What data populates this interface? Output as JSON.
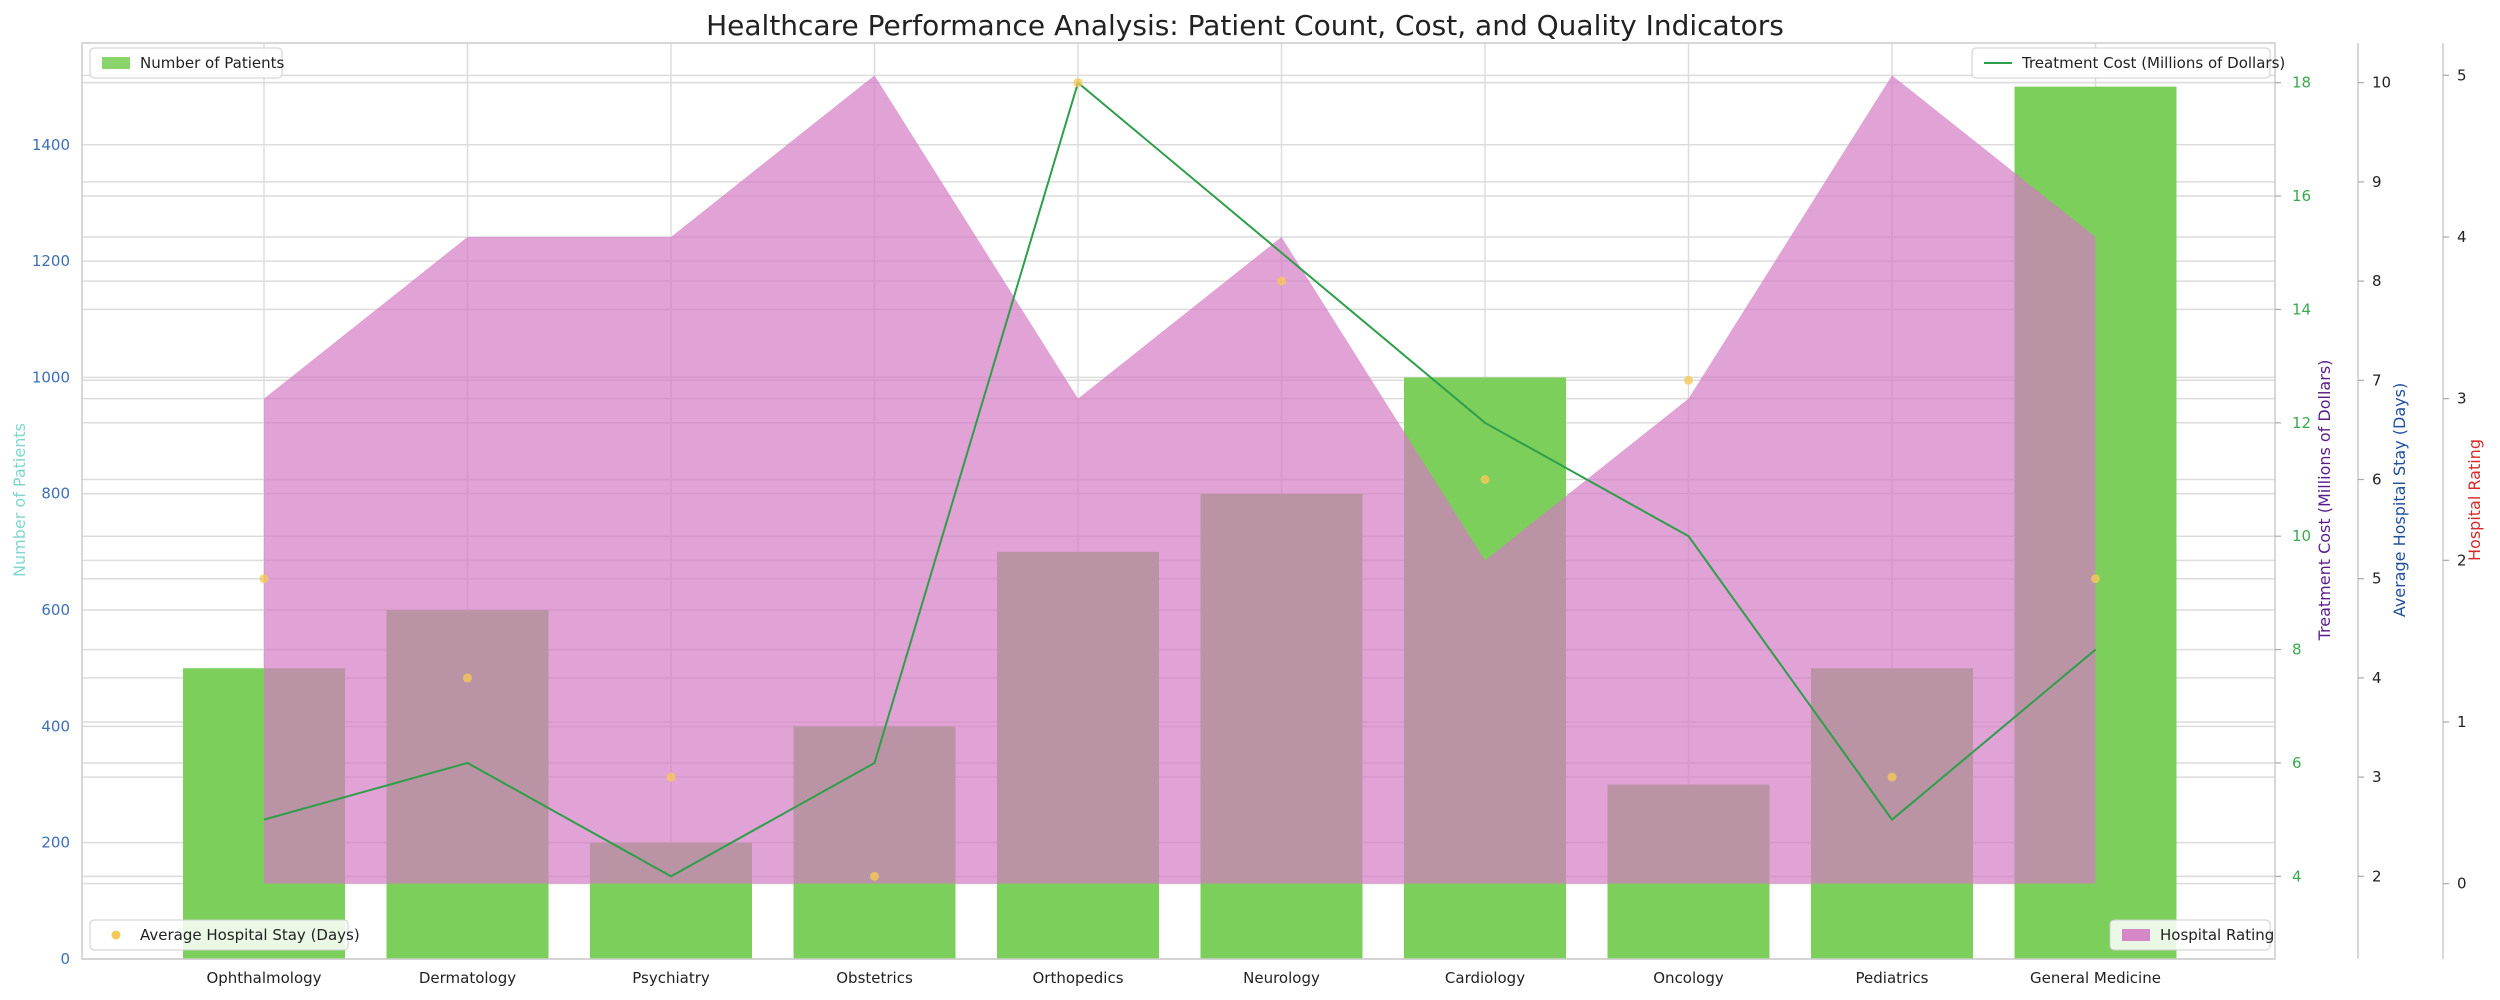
{
  "chart_data": {
    "title": "Healthcare Performance Analysis: Patient Count, Cost, and Quality Indicators",
    "type": "bar",
    "categories": [
      "Ophthalmology",
      "Dermatology",
      "Psychiatry",
      "Obstetrics",
      "Orthopedics",
      "Neurology",
      "Cardiology",
      "Oncology",
      "Pediatrics",
      "General Medicine"
    ],
    "series": [
      {
        "name": "Number of Patients",
        "type": "bar",
        "axis": "left",
        "color": "#7ccf5b",
        "values": [
          500,
          600,
          200,
          400,
          700,
          800,
          1000,
          300,
          500,
          1500
        ]
      },
      {
        "name": "Treatment Cost (Millions of Dollars)",
        "type": "line",
        "axis": "right1",
        "color": "#2e9e4b",
        "values": [
          5,
          6,
          4,
          6,
          18,
          15,
          12,
          10,
          5,
          8
        ]
      },
      {
        "name": "Average Hospital Stay (Days)",
        "type": "scatter",
        "axis": "right2",
        "color": "#f5c85a",
        "values": [
          5,
          4,
          3,
          2,
          10,
          8,
          6,
          7,
          3,
          5
        ]
      },
      {
        "name": "Hospital Rating",
        "type": "area",
        "axis": "right3",
        "color": "#d47ac4",
        "values": [
          3,
          4,
          4,
          5,
          3,
          4,
          2,
          3,
          5,
          4
        ]
      }
    ],
    "axes": {
      "left": {
        "label": "Number of Patients",
        "label_color": "#7fd6cf",
        "tick_color": "#3d6fb8",
        "ylim": [
          0,
          1575
        ],
        "ticks": [
          0,
          200,
          400,
          600,
          800,
          1000,
          1200,
          1400
        ]
      },
      "right1": {
        "label": "Treatment Cost (Millions of Dollars)",
        "label_color": "#5a1a8c",
        "tick_color": "#3aa94f",
        "ylim": [
          3.3,
          18.7
        ],
        "ticks": [
          4,
          6,
          8,
          10,
          12,
          14,
          16,
          18
        ]
      },
      "right2": {
        "label": "Average Hospital Stay (Days)",
        "label_color": "#1f4fa0",
        "tick_color": "#222222",
        "ylim": [
          1.6,
          10.4
        ],
        "ticks": [
          2,
          3,
          4,
          5,
          6,
          7,
          8,
          9,
          10
        ]
      },
      "right3": {
        "label": "Hospital Rating",
        "label_color": "#d62a2a",
        "tick_color": "#222222",
        "ylim": [
          -0.2,
          5.2
        ],
        "ticks": [
          0,
          1,
          2,
          3,
          4,
          5
        ]
      }
    },
    "grid": true,
    "legends": {
      "top-left": "Number of Patients",
      "top-right": "Treatment Cost (Millions of Dollars)",
      "bottom-left": "Average Hospital Stay (Days)",
      "bottom-right": "Hospital Rating"
    }
  }
}
